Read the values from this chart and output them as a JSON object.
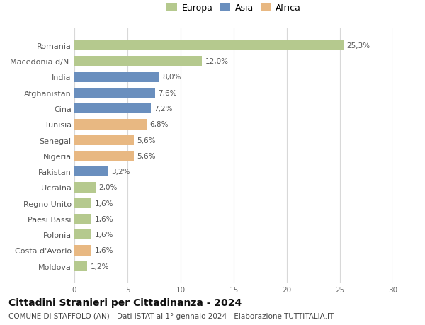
{
  "categories": [
    "Moldova",
    "Costa d'Avorio",
    "Polonia",
    "Paesi Bassi",
    "Regno Unito",
    "Ucraina",
    "Pakistan",
    "Nigeria",
    "Senegal",
    "Tunisia",
    "Cina",
    "Afghanistan",
    "India",
    "Macedonia d/N.",
    "Romania"
  ],
  "values": [
    1.2,
    1.6,
    1.6,
    1.6,
    1.6,
    2.0,
    3.2,
    5.6,
    5.6,
    6.8,
    7.2,
    7.6,
    8.0,
    12.0,
    25.3
  ],
  "continents": [
    "Europa",
    "Africa",
    "Europa",
    "Europa",
    "Europa",
    "Europa",
    "Asia",
    "Africa",
    "Africa",
    "Africa",
    "Asia",
    "Asia",
    "Asia",
    "Europa",
    "Europa"
  ],
  "colors": {
    "Europa": "#b5c98e",
    "Asia": "#6a8fbe",
    "Africa": "#e8b882"
  },
  "title1": "Cittadini Stranieri per Cittadinanza - 2024",
  "title2": "COMUNE DI STAFFOLO (AN) - Dati ISTAT al 1° gennaio 2024 - Elaborazione TUTTITALIA.IT",
  "xlim": [
    0,
    30
  ],
  "xticks": [
    0,
    5,
    10,
    15,
    20,
    25,
    30
  ],
  "bar_height": 0.65,
  "background_color": "#ffffff",
  "grid_color": "#d8d8d8",
  "label_fontsize": 7.5,
  "tick_fontsize": 7.5,
  "ytick_fontsize": 8,
  "title1_fontsize": 10,
  "title2_fontsize": 7.5,
  "legend_fontsize": 9
}
